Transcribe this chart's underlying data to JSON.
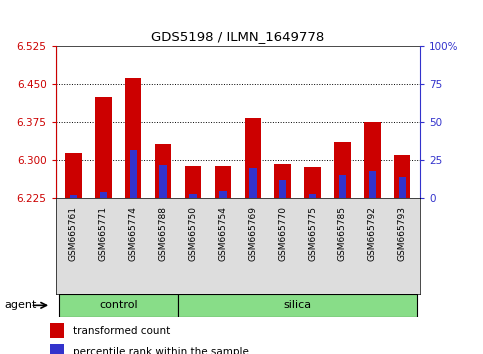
{
  "title": "GDS5198 / ILMN_1649778",
  "samples": [
    "GSM665761",
    "GSM665771",
    "GSM665774",
    "GSM665788",
    "GSM665750",
    "GSM665754",
    "GSM665769",
    "GSM665770",
    "GSM665775",
    "GSM665785",
    "GSM665792",
    "GSM665793"
  ],
  "groups": [
    "control",
    "control",
    "control",
    "control",
    "silica",
    "silica",
    "silica",
    "silica",
    "silica",
    "silica",
    "silica",
    "silica"
  ],
  "transformed_counts": [
    6.315,
    6.425,
    6.462,
    6.332,
    6.288,
    6.288,
    6.383,
    6.292,
    6.287,
    6.335,
    6.375,
    6.31
  ],
  "percentile_ranks": [
    2,
    4,
    32,
    22,
    3,
    5,
    20,
    12,
    3,
    15,
    18,
    14
  ],
  "y_min": 6.225,
  "y_max": 6.525,
  "y_ticks": [
    6.225,
    6.3,
    6.375,
    6.45,
    6.525
  ],
  "right_y_ticks": [
    0,
    25,
    50,
    75,
    100
  ],
  "bar_color": "#cc0000",
  "blue_color": "#3333cc",
  "bg_color": "#ffffff",
  "tick_label_color_left": "#cc0000",
  "tick_label_color_right": "#3333cc",
  "green_color": "#88dd88",
  "bar_width": 0.55,
  "blue_bar_width": 0.25,
  "legend_items": [
    "transformed count",
    "percentile rank within the sample"
  ],
  "agent_label": "agent",
  "group_labels": [
    "control",
    "silica"
  ],
  "n_control": 4,
  "n_silica": 8
}
